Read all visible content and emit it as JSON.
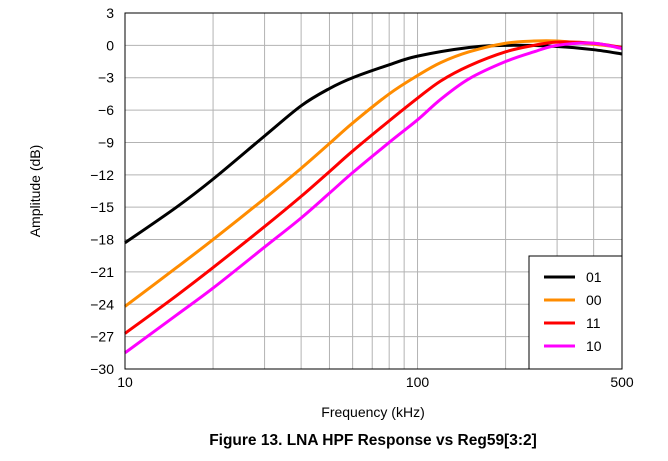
{
  "chart_data": {
    "type": "line",
    "xlabel": "Frequency (kHz)",
    "ylabel": "Amplitude (dB)",
    "caption": "Figure 13. LNA HPF Response vs Reg59[3:2]",
    "x_scale": "log",
    "xlim": [
      10,
      500
    ],
    "ylim": [
      -30,
      3
    ],
    "x_ticks": [
      10,
      100,
      500
    ],
    "x_tick_labels": [
      "10",
      "100",
      "500"
    ],
    "y_ticks": [
      -30,
      -27,
      -24,
      -21,
      -18,
      -15,
      -12,
      -9,
      -6,
      -3,
      0,
      3
    ],
    "y_tick_labels": [
      "−30",
      "−27",
      "−24",
      "−21",
      "−18",
      "−15",
      "−12",
      "−9",
      "−6",
      "−3",
      "0",
      "3"
    ],
    "grid": true,
    "legend_position": "bottom-right",
    "series": [
      {
        "name": "01",
        "color": "#000000",
        "x": [
          10,
          15,
          20,
          30,
          40,
          50,
          60,
          80,
          100,
          150,
          200,
          300,
          400,
          500
        ],
        "y": [
          -18.3,
          -15.0,
          -12.4,
          -8.4,
          -5.6,
          -4.0,
          -3.0,
          -1.8,
          -1.0,
          -0.2,
          0.0,
          -0.1,
          -0.4,
          -0.8
        ]
      },
      {
        "name": "00",
        "color": "#FF8C00",
        "x": [
          10,
          15,
          20,
          30,
          40,
          50,
          60,
          80,
          100,
          120,
          150,
          200,
          250,
          300,
          400,
          500
        ],
        "y": [
          -24.2,
          -20.6,
          -18.0,
          -14.2,
          -11.4,
          -9.1,
          -7.2,
          -4.5,
          -2.8,
          -1.6,
          -0.6,
          0.2,
          0.4,
          0.4,
          0.1,
          -0.2
        ]
      },
      {
        "name": "11",
        "color": "#FF0000",
        "x": [
          10,
          15,
          20,
          30,
          40,
          50,
          60,
          80,
          100,
          120,
          150,
          200,
          250,
          300,
          400,
          500
        ],
        "y": [
          -26.7,
          -23.2,
          -20.6,
          -16.8,
          -14.0,
          -11.7,
          -9.8,
          -7.0,
          -4.9,
          -3.3,
          -1.9,
          -0.6,
          0.0,
          0.3,
          0.2,
          -0.2
        ]
      },
      {
        "name": "10",
        "color": "#FF00FF",
        "x": [
          10,
          15,
          20,
          30,
          40,
          50,
          60,
          80,
          100,
          120,
          150,
          200,
          250,
          300,
          400,
          500
        ],
        "y": [
          -28.5,
          -25.0,
          -22.5,
          -18.7,
          -16.0,
          -13.7,
          -11.8,
          -9.0,
          -6.9,
          -5.0,
          -3.1,
          -1.5,
          -0.6,
          0.0,
          0.2,
          -0.3
        ]
      }
    ]
  }
}
